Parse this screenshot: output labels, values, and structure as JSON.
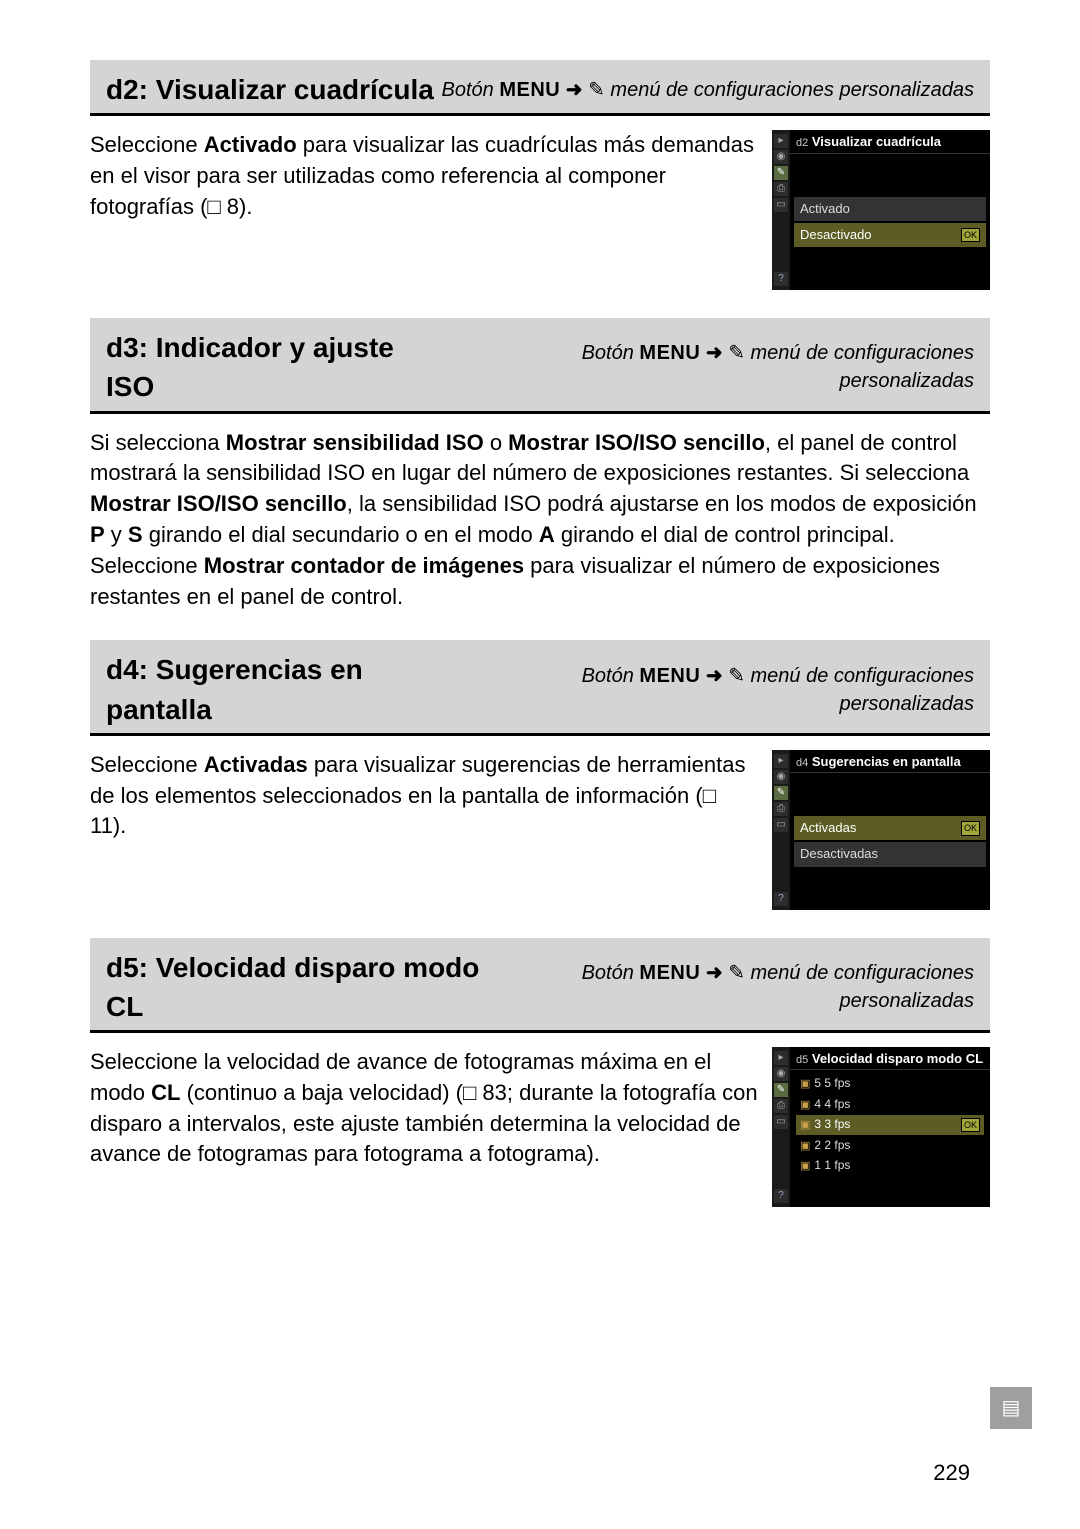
{
  "nav_text": {
    "button_prefix": "Botón",
    "menu_word": "MENU",
    "arrow": "➜",
    "pencil": "✎",
    "suffix": "menú de configuraciones personalizadas"
  },
  "sections": {
    "d2": {
      "title": "d2: Visualizar cuadrícula",
      "para_parts": {
        "p1": "Seleccione ",
        "b1": "Activado",
        "p2": " para visualizar las cuadrículas más demandas en el visor para ser utilizadas como referencia al componer fotografías (",
        "ref": "□ 8",
        "p3": ")."
      },
      "lcd": {
        "title_pre": "d2",
        "title": "Visualizar cuadrícula",
        "opt_on": "Activado",
        "opt_off": "Desactivado",
        "ok": "OK"
      }
    },
    "d3": {
      "title": "d3: Indicador y ajuste ISO",
      "para_parts": {
        "p1": "Si selecciona ",
        "b1": "Mostrar sensibilidad ISO",
        "p2": " o ",
        "b2": "Mostrar ISO/ISO sencillo",
        "p3": ", el panel de control mostrará la sensibilidad ISO en lugar del número de exposiciones restantes. Si selecciona ",
        "b3": "Mostrar ISO/ISO sencillo",
        "p4": ", la sensibilidad ISO podrá ajustarse en los modos de exposición ",
        "b4": "P",
        "p5": " y ",
        "b5": "S",
        "p6": " girando el dial secundario o en el modo ",
        "b6": "A",
        "p7": " girando el dial de control principal.  Seleccione ",
        "b7": "Mostrar contador de imágenes",
        "p8": " para visualizar el número de exposiciones restantes en el panel de control."
      }
    },
    "d4": {
      "title": "d4: Sugerencias en pantalla",
      "para_parts": {
        "p1": "Seleccione ",
        "b1": "Activadas",
        "p2": " para visualizar sugerencias de herramientas de los elementos seleccionados en la pantalla de información (",
        "ref": "□ 11",
        "p3": ")."
      },
      "lcd": {
        "title_pre": "d4",
        "title": "Sugerencias en pantalla",
        "opt_on": "Activadas",
        "opt_off": "Desactivadas",
        "ok": "OK"
      }
    },
    "d5": {
      "title": "d5: Velocidad disparo modo CL",
      "para_parts": {
        "p1": "Seleccione la velocidad de avance de fotogramas máxima en el modo ",
        "b1": "CL",
        "p2": " (continuo a baja velocidad) (",
        "ref": "□ 83",
        "p3": "; durante la fotografía con disparo a intervalos, este ajuste también determina la velocidad de avance de fotogramas para fotograma a fotograma)."
      },
      "lcd": {
        "title_pre": "d5",
        "title": "Velocidad disparo modo CL",
        "r1": "5  5 fps",
        "r2": "4  4 fps",
        "r3": "3  3 fps",
        "r4": "2  2 fps",
        "r5": "1  1 fps",
        "ok": "OK"
      }
    }
  },
  "page_number": "229",
  "side_tab_glyph": "▤"
}
